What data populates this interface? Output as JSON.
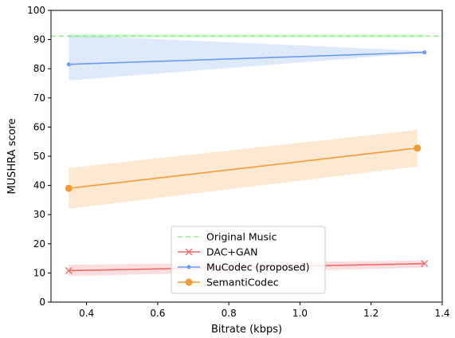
{
  "chart_data": {
    "type": "line",
    "xlabel": "Bitrate (kbps)",
    "ylabel": "MUSHRA score",
    "xlim": [
      0.3,
      1.4
    ],
    "ylim": [
      0,
      100
    ],
    "x_ticks": [
      0.4,
      0.6,
      0.8,
      1.0,
      1.2,
      1.4
    ],
    "x_tick_labels": [
      "0.4",
      "0.6",
      "0.8",
      "1.0",
      "1.2",
      "1.4"
    ],
    "y_ticks": [
      0,
      10,
      20,
      30,
      40,
      50,
      60,
      70,
      80,
      90,
      100
    ],
    "y_tick_labels": [
      "0",
      "10",
      "20",
      "30",
      "40",
      "50",
      "60",
      "70",
      "80",
      "90",
      "100"
    ],
    "grid": false,
    "legend_position": "bottom-center",
    "series": [
      {
        "name": "Original Music",
        "style": "dashed-reference",
        "color": "#90ee90",
        "value": 91.2,
        "band": [
          90.7,
          91.9
        ],
        "band_x": [
          0.35,
          1.35
        ]
      },
      {
        "name": "DAC+GAN",
        "marker": "x",
        "color": "#f26b6b",
        "x": [
          0.35,
          1.35
        ],
        "y": [
          10.8,
          13.2
        ],
        "lower": [
          8.9,
          11.8
        ],
        "upper": [
          12.8,
          14.3
        ]
      },
      {
        "name": "MuCodec (proposed)",
        "marker": "small-dot",
        "color": "#6b9bf2",
        "x": [
          0.35,
          1.35
        ],
        "y": [
          81.5,
          85.6
        ],
        "lower": [
          76.0,
          85.4
        ],
        "upper": [
          91.5,
          86.1
        ]
      },
      {
        "name": "SemantiCodec",
        "marker": "dot",
        "color": "#f59a32",
        "x": [
          0.35,
          1.33
        ],
        "y": [
          39.0,
          52.8
        ],
        "lower": [
          32.0,
          46.5
        ],
        "upper": [
          46.0,
          59.0
        ]
      }
    ]
  }
}
